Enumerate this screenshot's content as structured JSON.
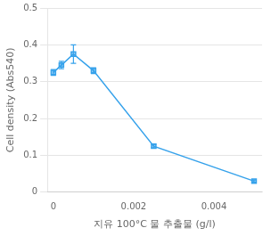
{
  "chart_data": {
    "type": "line",
    "xlabel": "지유 100°C 물 추출물 (g/l)",
    "ylabel": "Cell density (Abs540)",
    "x": [
      0,
      0.0002,
      0.0005,
      0.001,
      0.0025,
      0.005
    ],
    "values": [
      0.325,
      0.345,
      0.375,
      0.33,
      0.125,
      0.03
    ],
    "yerr": [
      0.008,
      0.01,
      0.025,
      0.008,
      0.005,
      0.003
    ],
    "xlim": [
      -0.00015,
      0.0052
    ],
    "ylim": [
      0,
      0.5
    ],
    "xticks": [
      0,
      0.002,
      0.004
    ],
    "yticks": [
      0,
      0.1,
      0.2,
      0.3,
      0.4,
      0.5
    ],
    "marker": "square",
    "grid": "y"
  }
}
